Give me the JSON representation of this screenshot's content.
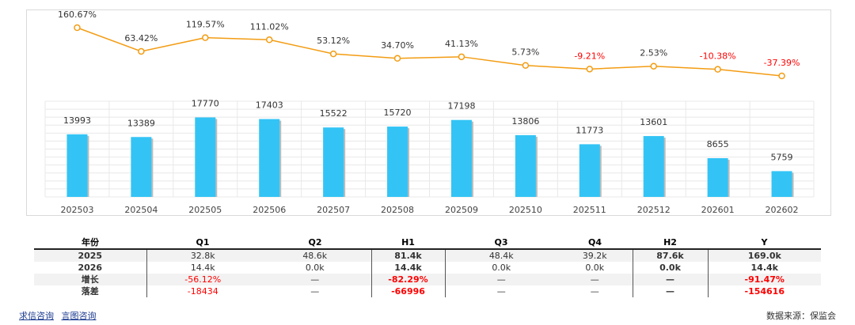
{
  "chart_data": {
    "type": "bar+line",
    "categories": [
      "202503",
      "202504",
      "202505",
      "202506",
      "202507",
      "202508",
      "202509",
      "202510",
      "202511",
      "202512",
      "202601",
      "202602"
    ],
    "series": [
      {
        "values": [
          13993,
          13389,
          17770,
          17403,
          15522,
          15720,
          17198,
          13806,
          11773,
          13601,
          8655,
          5759
        ]
      },
      {
        "values": [
          160.67,
          63.42,
          119.57,
          111.02,
          53.12,
          34.7,
          41.13,
          5.73,
          -9.21,
          2.53,
          -10.38,
          -37.39
        ]
      }
    ],
    "bar_labels": [
      "13993",
      "13389",
      "17770",
      "17403",
      "15522",
      "15720",
      "17198",
      "13806",
      "11773",
      "13601",
      "8655",
      "5759"
    ],
    "line_labels": [
      "160.67%",
      "63.42%",
      "119.57%",
      "111.02%",
      "53.12%",
      "34.70%",
      "41.13%",
      "5.73%",
      "-9.21%",
      "2.53%",
      "-10.38%",
      "-37.39%"
    ],
    "grid": true,
    "colors": {
      "bar": "#33c4f5",
      "line": "#f39c12",
      "negative_label": "#ff0000",
      "label": "#333333"
    }
  },
  "table": {
    "headers": [
      "年份",
      "Q1",
      "Q2",
      "H1",
      "Q3",
      "Q4",
      "H2",
      "Y"
    ],
    "rows": [
      {
        "label": "2025",
        "cells": [
          "32.8k",
          "48.6k",
          "81.4k",
          "48.4k",
          "39.2k",
          "87.6k",
          "169.0k"
        ]
      },
      {
        "label": "2026",
        "cells": [
          "14.4k",
          "0.0k",
          "14.4k",
          "0.0k",
          "0.0k",
          "0.0k",
          "14.4k"
        ]
      },
      {
        "label": "增长",
        "cells": [
          "-56.12%",
          "—",
          "-82.29%",
          "—",
          "—",
          "—",
          "-91.47%"
        ]
      },
      {
        "label": "落差",
        "cells": [
          "-18434",
          "—",
          "-66996",
          "—",
          "—",
          "—",
          "-154616"
        ]
      }
    ]
  },
  "footer": {
    "link1": "求信咨询",
    "link2": "言图咨询",
    "source": "数据来源：保监会"
  }
}
